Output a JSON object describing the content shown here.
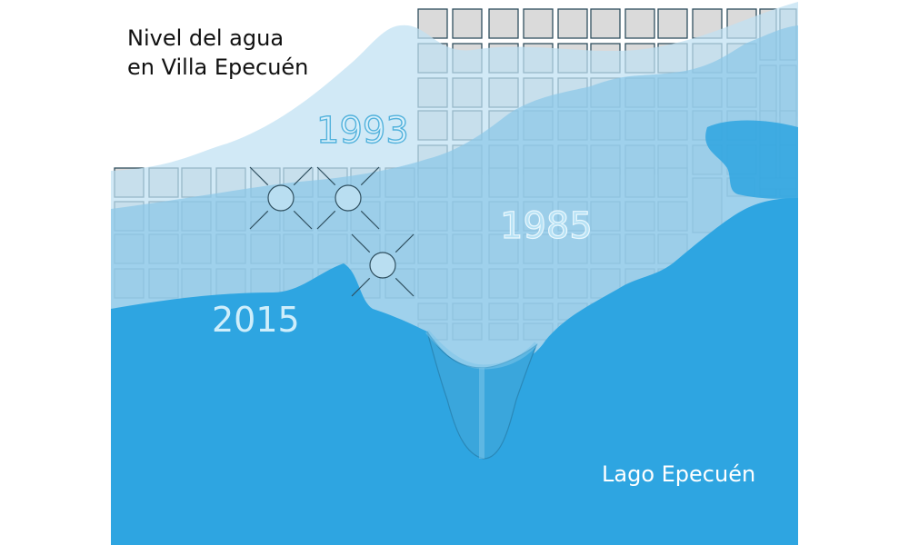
{
  "title": {
    "line1": "Nivel del agua",
    "line2": "en Villa Epecuén"
  },
  "labels": {
    "year_1993": "1993",
    "year_1985": "1985",
    "year_2015": "2015",
    "lake": "Lago Epecuén"
  },
  "colors": {
    "dry_block": "#dadada",
    "water_1993": "#c5e4f3",
    "water_1985": "#8fc9e9",
    "water_2015": "#2ea5e1",
    "street_lines": "#2f4f5f",
    "label_1993": "#53b2dc",
    "label_1985": "#a9dcf3",
    "label_2015": "#cfeefb",
    "lake_label": "#ffffff"
  }
}
